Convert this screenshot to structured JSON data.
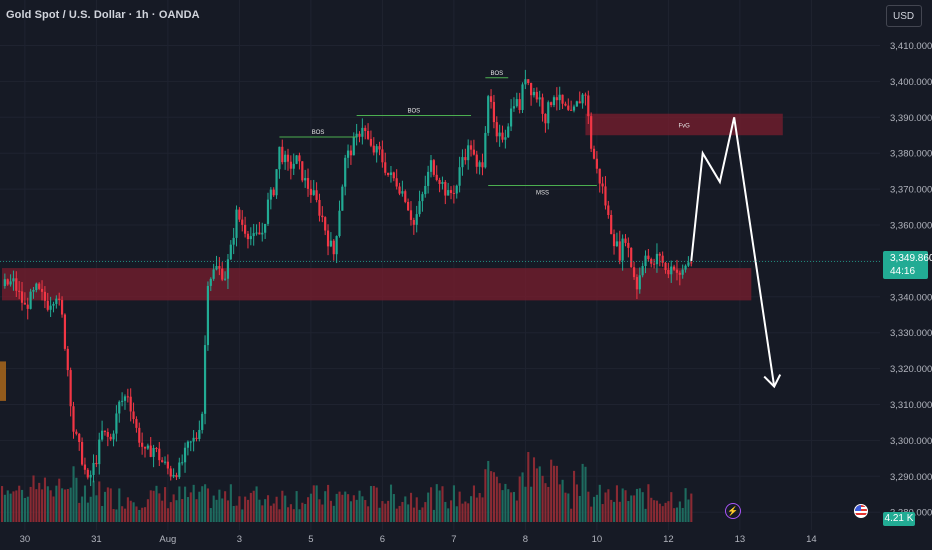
{
  "header": {
    "symbol_title": "Gold Spot / U.S. Dollar · 1h · OANDA",
    "currency_button": "USD"
  },
  "last_price": {
    "price": "3,349.860",
    "countdown": "44:16"
  },
  "volume_tag": "4.21 K",
  "colors": {
    "background": "#161a25",
    "up": "#22ab94",
    "down": "#f23645",
    "zone": "#7a1e2e",
    "arrow": "#ffffff",
    "grid": "#1f2330"
  },
  "icons": [
    "flash-icon",
    "us-flag-icon"
  ],
  "chart_data": {
    "type": "candlestick",
    "title": "Gold Spot / U.S. Dollar · 1h · OANDA",
    "ylim": [
      3275,
      3415
    ],
    "y_ticks": [
      3280,
      3290,
      3300,
      3310,
      3320,
      3330,
      3340,
      3350,
      3360,
      3370,
      3380,
      3390,
      3400,
      3410
    ],
    "y_tick_labels": [
      "3,280.000",
      "3,290.000",
      "3,300.000",
      "3,310.000",
      "3,320.000",
      "3,330.000",
      "3,340.000",
      "3,350.000",
      "3,360.000",
      "3,370.000",
      "3,380.000",
      "3,390.000",
      "3,400.000",
      "3,410.000"
    ],
    "x_range": [
      0,
      260
    ],
    "x_ticks": [
      {
        "x": 8,
        "label": "30"
      },
      {
        "x": 33,
        "label": "31"
      },
      {
        "x": 58,
        "label": "Aug"
      },
      {
        "x": 83,
        "label": "3"
      },
      {
        "x": 108,
        "label": "5"
      },
      {
        "x": 133,
        "label": "6"
      },
      {
        "x": 158,
        "label": "7"
      },
      {
        "x": 183,
        "label": "8"
      },
      {
        "x": 208,
        "label": "10"
      },
      {
        "x": 233,
        "label": "12"
      },
      {
        "x": 258,
        "label": "13"
      },
      {
        "x": 283,
        "label": "14"
      }
    ],
    "price_path": [
      [
        0,
        3343
      ],
      [
        4,
        3344
      ],
      [
        8,
        3337
      ],
      [
        12,
        3342
      ],
      [
        16,
        3338
      ],
      [
        19,
        3341
      ],
      [
        21,
        3334
      ],
      [
        23,
        3320
      ],
      [
        25,
        3303
      ],
      [
        28,
        3295
      ],
      [
        30,
        3288
      ],
      [
        33,
        3295
      ],
      [
        35,
        3302
      ],
      [
        38,
        3300
      ],
      [
        41,
        3310
      ],
      [
        44,
        3313
      ],
      [
        47,
        3303
      ],
      [
        50,
        3296
      ],
      [
        53,
        3298
      ],
      [
        56,
        3294
      ],
      [
        59,
        3291
      ],
      [
        62,
        3292
      ],
      [
        65,
        3298
      ],
      [
        68,
        3301
      ],
      [
        70,
        3308
      ],
      [
        72,
        3345
      ],
      [
        75,
        3348
      ],
      [
        78,
        3346
      ],
      [
        80,
        3353
      ],
      [
        82,
        3363
      ],
      [
        85,
        3359
      ],
      [
        88,
        3356
      ],
      [
        91,
        3358
      ],
      [
        93,
        3366
      ],
      [
        95,
        3370
      ],
      [
        97,
        3381
      ],
      [
        100,
        3376
      ],
      [
        103,
        3378
      ],
      [
        106,
        3372
      ],
      [
        109,
        3368
      ],
      [
        112,
        3362
      ],
      [
        114,
        3356
      ],
      [
        116,
        3352
      ],
      [
        118,
        3365
      ],
      [
        120,
        3378
      ],
      [
        124,
        3384
      ],
      [
        126,
        3388
      ],
      [
        129,
        3381
      ],
      [
        132,
        3380
      ],
      [
        135,
        3374
      ],
      [
        138,
        3372
      ],
      [
        141,
        3368
      ],
      [
        144,
        3360
      ],
      [
        147,
        3368
      ],
      [
        150,
        3377
      ],
      [
        153,
        3373
      ],
      [
        156,
        3368
      ],
      [
        159,
        3371
      ],
      [
        161,
        3379
      ],
      [
        164,
        3382
      ],
      [
        166,
        3375
      ],
      [
        168,
        3378
      ],
      [
        170,
        3397
      ],
      [
        173,
        3383
      ],
      [
        176,
        3386
      ],
      [
        179,
        3395
      ],
      [
        181,
        3393
      ],
      [
        183,
        3402
      ],
      [
        185,
        3398
      ],
      [
        188,
        3395
      ],
      [
        190,
        3390
      ],
      [
        193,
        3397
      ],
      [
        196,
        3393
      ],
      [
        199,
        3390
      ],
      [
        202,
        3395
      ],
      [
        204,
        3397
      ],
      [
        206,
        3382
      ],
      [
        208,
        3375
      ],
      [
        210,
        3370
      ],
      [
        212,
        3362
      ],
      [
        214,
        3356
      ],
      [
        216,
        3352
      ],
      [
        218,
        3357
      ],
      [
        220,
        3349
      ],
      [
        222,
        3343
      ],
      [
        225,
        3353
      ],
      [
        227,
        3348
      ],
      [
        230,
        3352
      ],
      [
        232,
        3347
      ],
      [
        235,
        3349
      ],
      [
        237,
        3345
      ],
      [
        239,
        3349
      ],
      [
        241,
        3350
      ]
    ],
    "zones": [
      {
        "kind": "support",
        "x0": 0,
        "x1": 262,
        "y0": 3339,
        "y1": 3348
      },
      {
        "kind": "fvg",
        "label": "FvG",
        "x0": 204,
        "x1": 273,
        "y0": 3385,
        "y1": 3391
      }
    ],
    "annotations": [
      {
        "label": "BOS",
        "x0": 97,
        "x1": 124,
        "y": 3384.5
      },
      {
        "label": "BOS",
        "x0": 124,
        "x1": 164,
        "y": 3390.5
      },
      {
        "label": "BOS",
        "x0": 169,
        "x1": 177,
        "y": 3401
      },
      {
        "label": "MSS",
        "x0": 170,
        "x1": 208,
        "y": 3371
      }
    ],
    "projection": [
      [
        241,
        3350
      ],
      [
        245,
        3380
      ],
      [
        251,
        3372
      ],
      [
        256,
        3390
      ],
      [
        270,
        3315
      ]
    ],
    "last_price": 3349.86,
    "volume_label": "4.21 K"
  }
}
